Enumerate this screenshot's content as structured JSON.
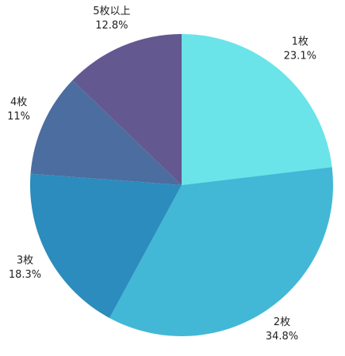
{
  "chart_data": {
    "type": "pie",
    "categories": [
      "1枚",
      "2枚",
      "3枚",
      "4枚",
      "5枚以上"
    ],
    "values": [
      23.1,
      34.8,
      18.3,
      11,
      12.8
    ],
    "value_labels": [
      "23.1%",
      "34.8%",
      "18.3%",
      "11%",
      "12.8%"
    ],
    "colors": [
      "#6ae4e9",
      "#42b8d6",
      "#2b8cbd",
      "#4c6d9f",
      "#645890"
    ],
    "start_angle": "12 o'clock",
    "direction": "clockwise",
    "legend": "none"
  }
}
